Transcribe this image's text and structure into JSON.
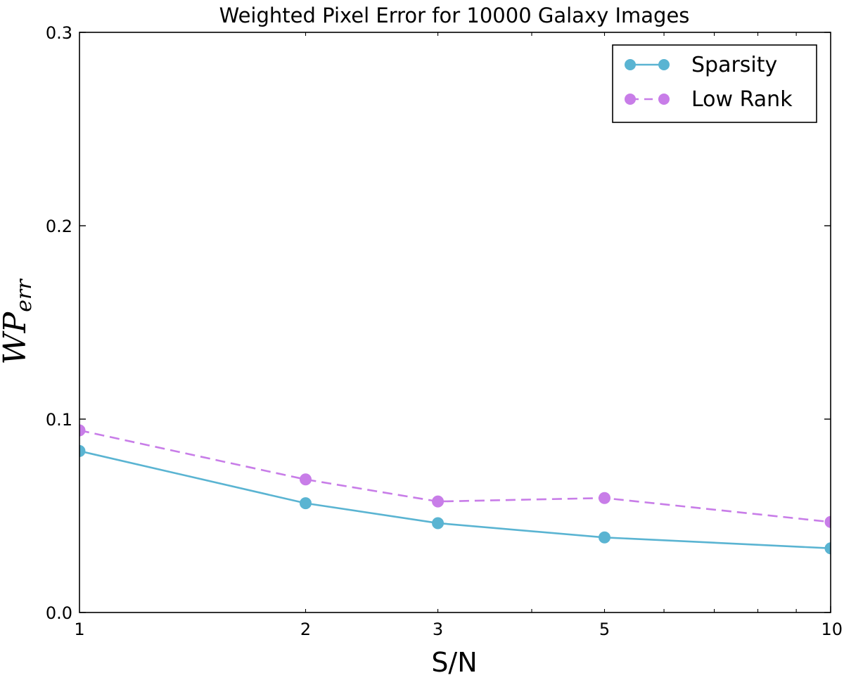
{
  "chart_data": {
    "type": "line",
    "title": "Weighted Pixel Error for 10000 Galaxy Images",
    "xlabel": "S/N",
    "ylabel": {
      "main": "WP",
      "sub": "err"
    },
    "x_scale": "log",
    "x": [
      1,
      2,
      3,
      5,
      10
    ],
    "xlim": [
      1,
      10
    ],
    "ylim": [
      0.0,
      0.3
    ],
    "x_ticks": [
      1,
      2,
      3,
      5,
      10
    ],
    "x_tick_labels": [
      "1",
      "2",
      "3",
      "5",
      "10"
    ],
    "y_ticks": [
      0.0,
      0.1,
      0.2,
      0.3
    ],
    "y_tick_labels": [
      "0.0",
      "0.1",
      "0.2",
      "0.3"
    ],
    "grid": false,
    "legend_position": "top-right",
    "series": [
      {
        "name": "Sparsity",
        "values": [
          0.0835,
          0.0565,
          0.0462,
          0.0388,
          0.0332
        ],
        "color": "#5ab4d2",
        "style": "solid"
      },
      {
        "name": "Low Rank",
        "values": [
          0.0942,
          0.0688,
          0.0574,
          0.0592,
          0.0468
        ],
        "color": "#c87de8",
        "style": "dashed"
      }
    ]
  }
}
